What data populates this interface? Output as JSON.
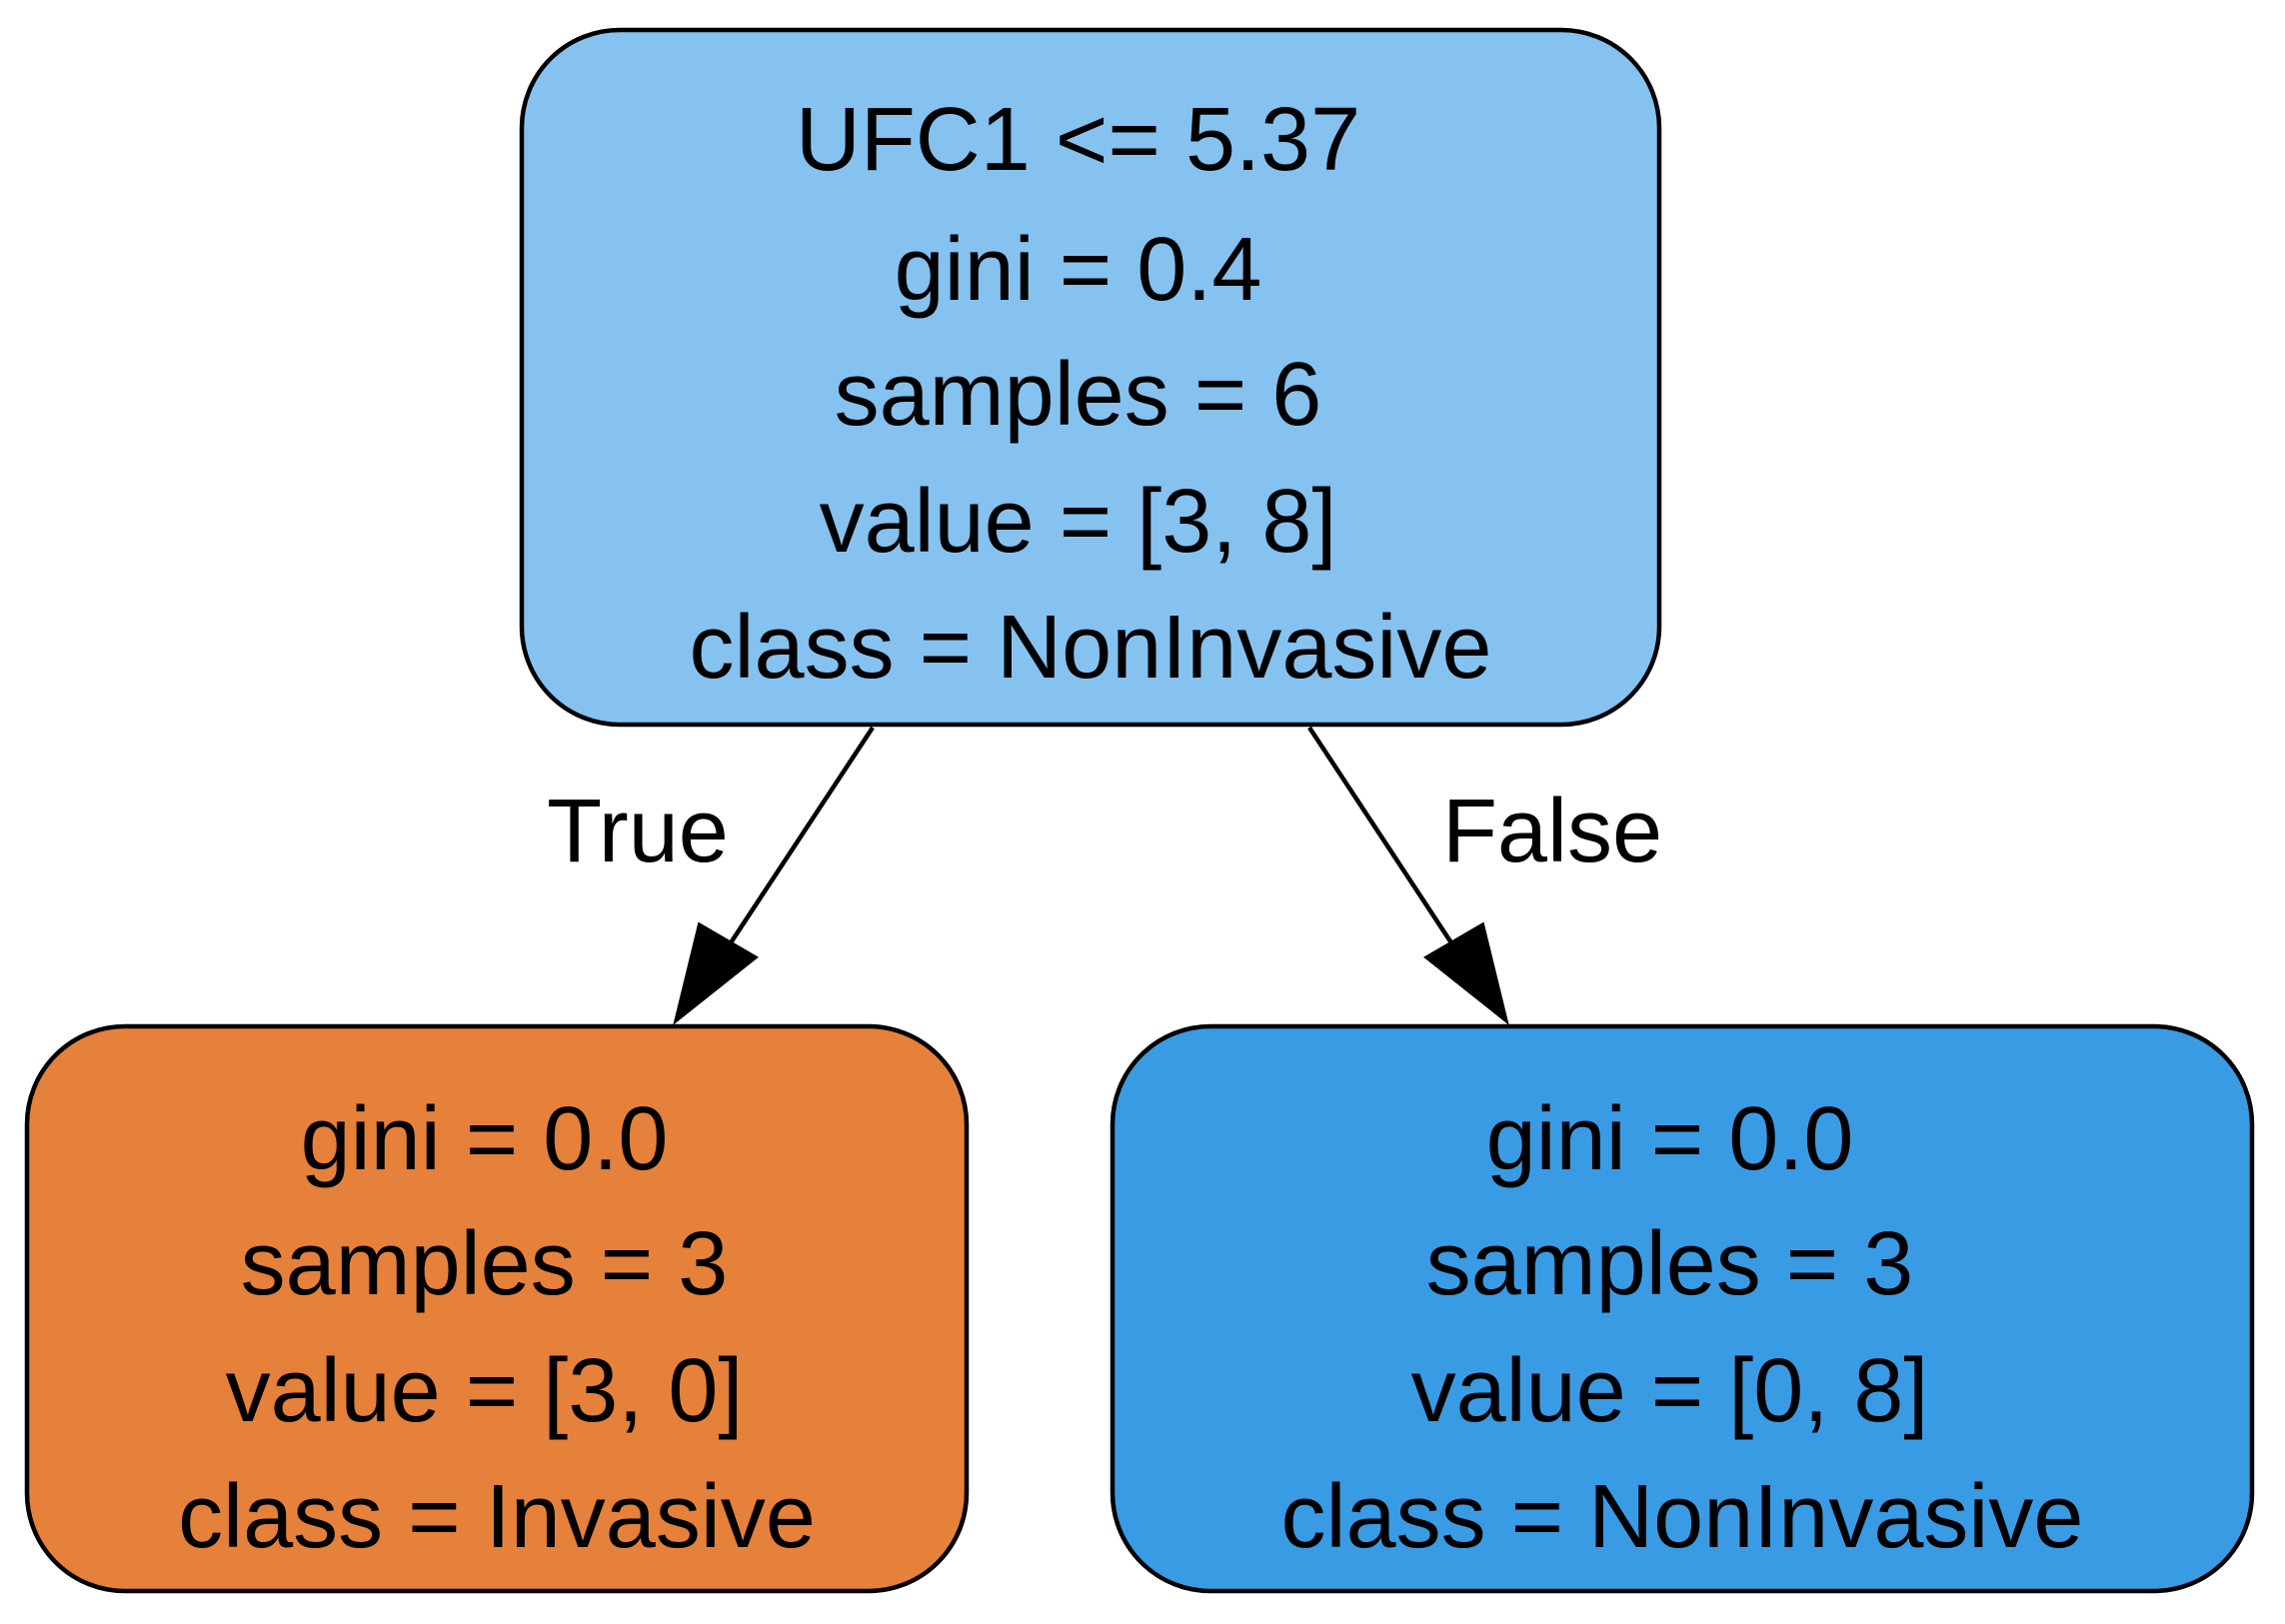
{
  "tree": {
    "root": {
      "lines": [
        "UFC1 <= 5.37",
        "gini = 0.4",
        "samples = 6",
        "value = [3, 8]",
        "class = NonInvasive"
      ],
      "fill": "#86c2f0"
    },
    "left": {
      "lines": [
        "gini = 0.0",
        "samples = 3",
        "value = [3, 0]",
        "class = Invasive"
      ],
      "fill": "#e5813a"
    },
    "right": {
      "lines": [
        "gini = 0.0",
        "samples = 3",
        "value = [0, 8]",
        "class = NonInvasive"
      ],
      "fill": "#3a9be5"
    },
    "edges": {
      "left_label": "True",
      "right_label": "False"
    }
  }
}
